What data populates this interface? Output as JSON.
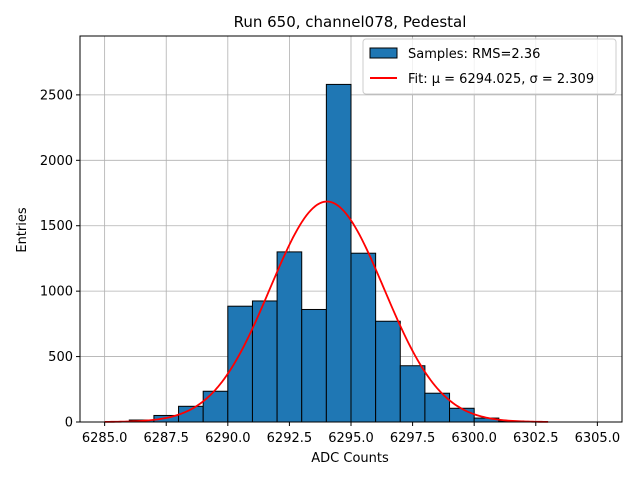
{
  "chart_data": {
    "type": "bar",
    "title": "Run 650, channel078, Pedestal",
    "xlabel": "ADC Counts",
    "ylabel": "Entries",
    "xlim": [
      6284.0,
      6306.0
    ],
    "ylim": [
      0,
      2950
    ],
    "xticks": [
      6285.0,
      6287.5,
      6290.0,
      6292.5,
      6295.0,
      6297.5,
      6300.0,
      6302.5,
      6305.0
    ],
    "xtick_labels": [
      "6285.0",
      "6287.5",
      "6290.0",
      "6292.5",
      "6295.0",
      "6297.5",
      "6300.0",
      "6302.5",
      "6305.0"
    ],
    "yticks": [
      0,
      500,
      1000,
      1500,
      2000,
      2500
    ],
    "ytick_labels": [
      "0",
      "500",
      "1000",
      "1500",
      "2000",
      "2500"
    ],
    "grid": true,
    "legend_position": "top-right",
    "bar_color": "#1f77b4",
    "fit_color": "#ff0000",
    "histogram": {
      "name": "Samples: RMS=2.36",
      "bin_edges": [
        6286.0,
        6287.0,
        6288.0,
        6289.0,
        6290.0,
        6291.0,
        6292.0,
        6293.0,
        6294.0,
        6295.0,
        6296.0,
        6297.0,
        6298.0,
        6299.0,
        6300.0,
        6301.0,
        6302.0
      ],
      "counts": [
        15,
        50,
        120,
        235,
        885,
        925,
        1300,
        860,
        2580,
        1290,
        770,
        430,
        220,
        105,
        30,
        8
      ]
    },
    "fit": {
      "name": "Fit: μ = 6294.025, σ = 2.309",
      "mu": 6294.025,
      "sigma": 2.309,
      "amplitude": 1685,
      "x_range": [
        6285.0,
        6303.0
      ]
    },
    "legend": [
      {
        "label": "Samples: RMS=2.36",
        "kind": "patch"
      },
      {
        "label": "Fit: μ = 6294.025, σ = 2.309",
        "kind": "line"
      }
    ]
  }
}
